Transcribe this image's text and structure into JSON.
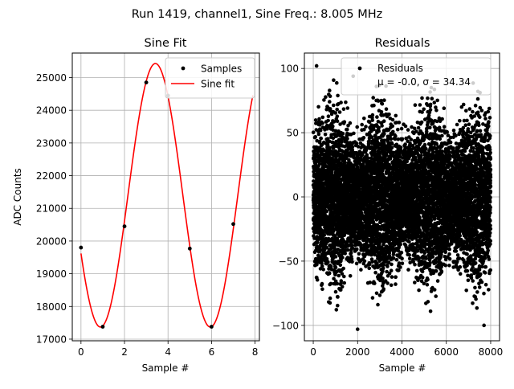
{
  "figure": {
    "suptitle": "Run 1419, channel1, Sine Freq.: 8.005 MHz"
  },
  "colors": {
    "fit_line": "#ff0000",
    "samples": "#000000",
    "residuals": "#000000",
    "grid": "#b0b0b0"
  },
  "chart_data": [
    {
      "type": "line",
      "title": "Sine Fit",
      "xlabel": "Sample #",
      "ylabel": "ADC Counts",
      "xlim": [
        -0.4,
        8.2
      ],
      "ylim": [
        16950,
        25750
      ],
      "xticks": [
        0,
        2,
        4,
        6,
        8
      ],
      "yticks": [
        17000,
        18000,
        19000,
        20000,
        21000,
        22000,
        23000,
        24000,
        25000
      ],
      "grid": true,
      "legend": "top-right",
      "series": [
        {
          "name": "Samples",
          "style": "points",
          "x": [
            0,
            1,
            2,
            3,
            4,
            5,
            6,
            7
          ],
          "y": [
            19800,
            17380,
            20450,
            24850,
            24450,
            19770,
            17380,
            20520
          ]
        },
        {
          "name": "Sine fit",
          "style": "line",
          "model": {
            "offset": 21400,
            "amplitude": 4030,
            "period_samples": 5.05,
            "peak_x": 3.42
          },
          "x_range": [
            0,
            7.9
          ]
        }
      ]
    },
    {
      "type": "scatter",
      "title": "Residuals",
      "xlabel": "Sample #",
      "ylabel": "",
      "xlim": [
        -400,
        8400
      ],
      "ylim": [
        -112,
        112
      ],
      "xticks": [
        0,
        2000,
        4000,
        6000,
        8000
      ],
      "yticks": [
        -100,
        -50,
        0,
        50,
        100
      ],
      "grid": true,
      "legend": "top-right",
      "series": [
        {
          "name": "Residuals",
          "stats_label": "μ = -0.0, σ = 34.34",
          "n_points": 8000,
          "band_period": 2150,
          "band_centers": [
            900,
            3050,
            5200,
            7350
          ],
          "envelope_peak": 95,
          "envelope_floor": 55,
          "extremes": [
            [
              150,
              102
            ],
            [
              1800,
              94
            ],
            [
              2000,
              -103
            ],
            [
              7700,
              -100
            ]
          ]
        }
      ]
    }
  ]
}
